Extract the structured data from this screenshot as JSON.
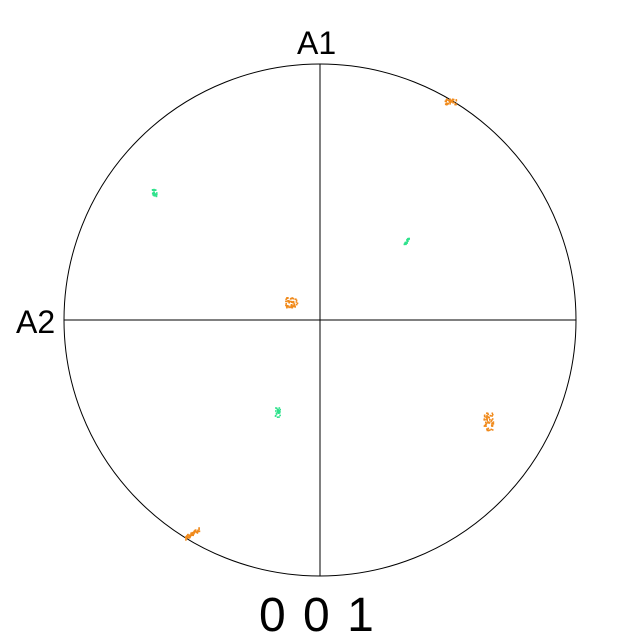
{
  "figure": {
    "type": "pole-figure",
    "axis_labels": {
      "top": "A1",
      "left": "A2"
    },
    "plane_label": "0 0 1",
    "colors": {
      "outline": "#000000",
      "phase_orange": "#f08a1c",
      "phase_green": "#2fe28c"
    },
    "clusters": [
      {
        "name": "orange-cluster-top-right-edge",
        "color": "phase_orange"
      },
      {
        "name": "orange-cluster-near-center",
        "color": "phase_orange"
      },
      {
        "name": "orange-cluster-lower-right",
        "color": "phase_orange"
      },
      {
        "name": "orange-cluster-lower-left-edge",
        "color": "phase_orange"
      },
      {
        "name": "green-cluster-upper-left",
        "color": "phase_green"
      },
      {
        "name": "green-cluster-upper-right",
        "color": "phase_green"
      },
      {
        "name": "green-cluster-lower-center",
        "color": "phase_green"
      }
    ]
  }
}
